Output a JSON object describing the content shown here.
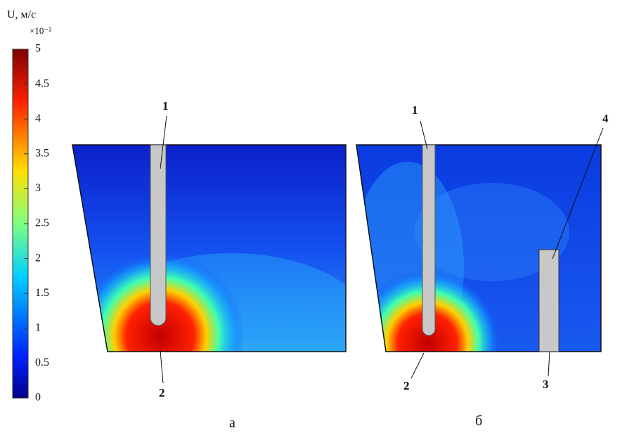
{
  "colorbar": {
    "title": "U, м/с",
    "scale": "×10⁻²",
    "lim": [
      0,
      5
    ],
    "ticks": [
      0,
      0.5,
      1,
      1.5,
      2,
      2.5,
      3,
      3.5,
      4,
      4.5,
      5
    ]
  },
  "panels": [
    {
      "label": "а",
      "callouts": [
        "1",
        "2"
      ]
    },
    {
      "label": "б",
      "callouts": [
        "1",
        "2",
        "3",
        "4"
      ]
    }
  ]
}
